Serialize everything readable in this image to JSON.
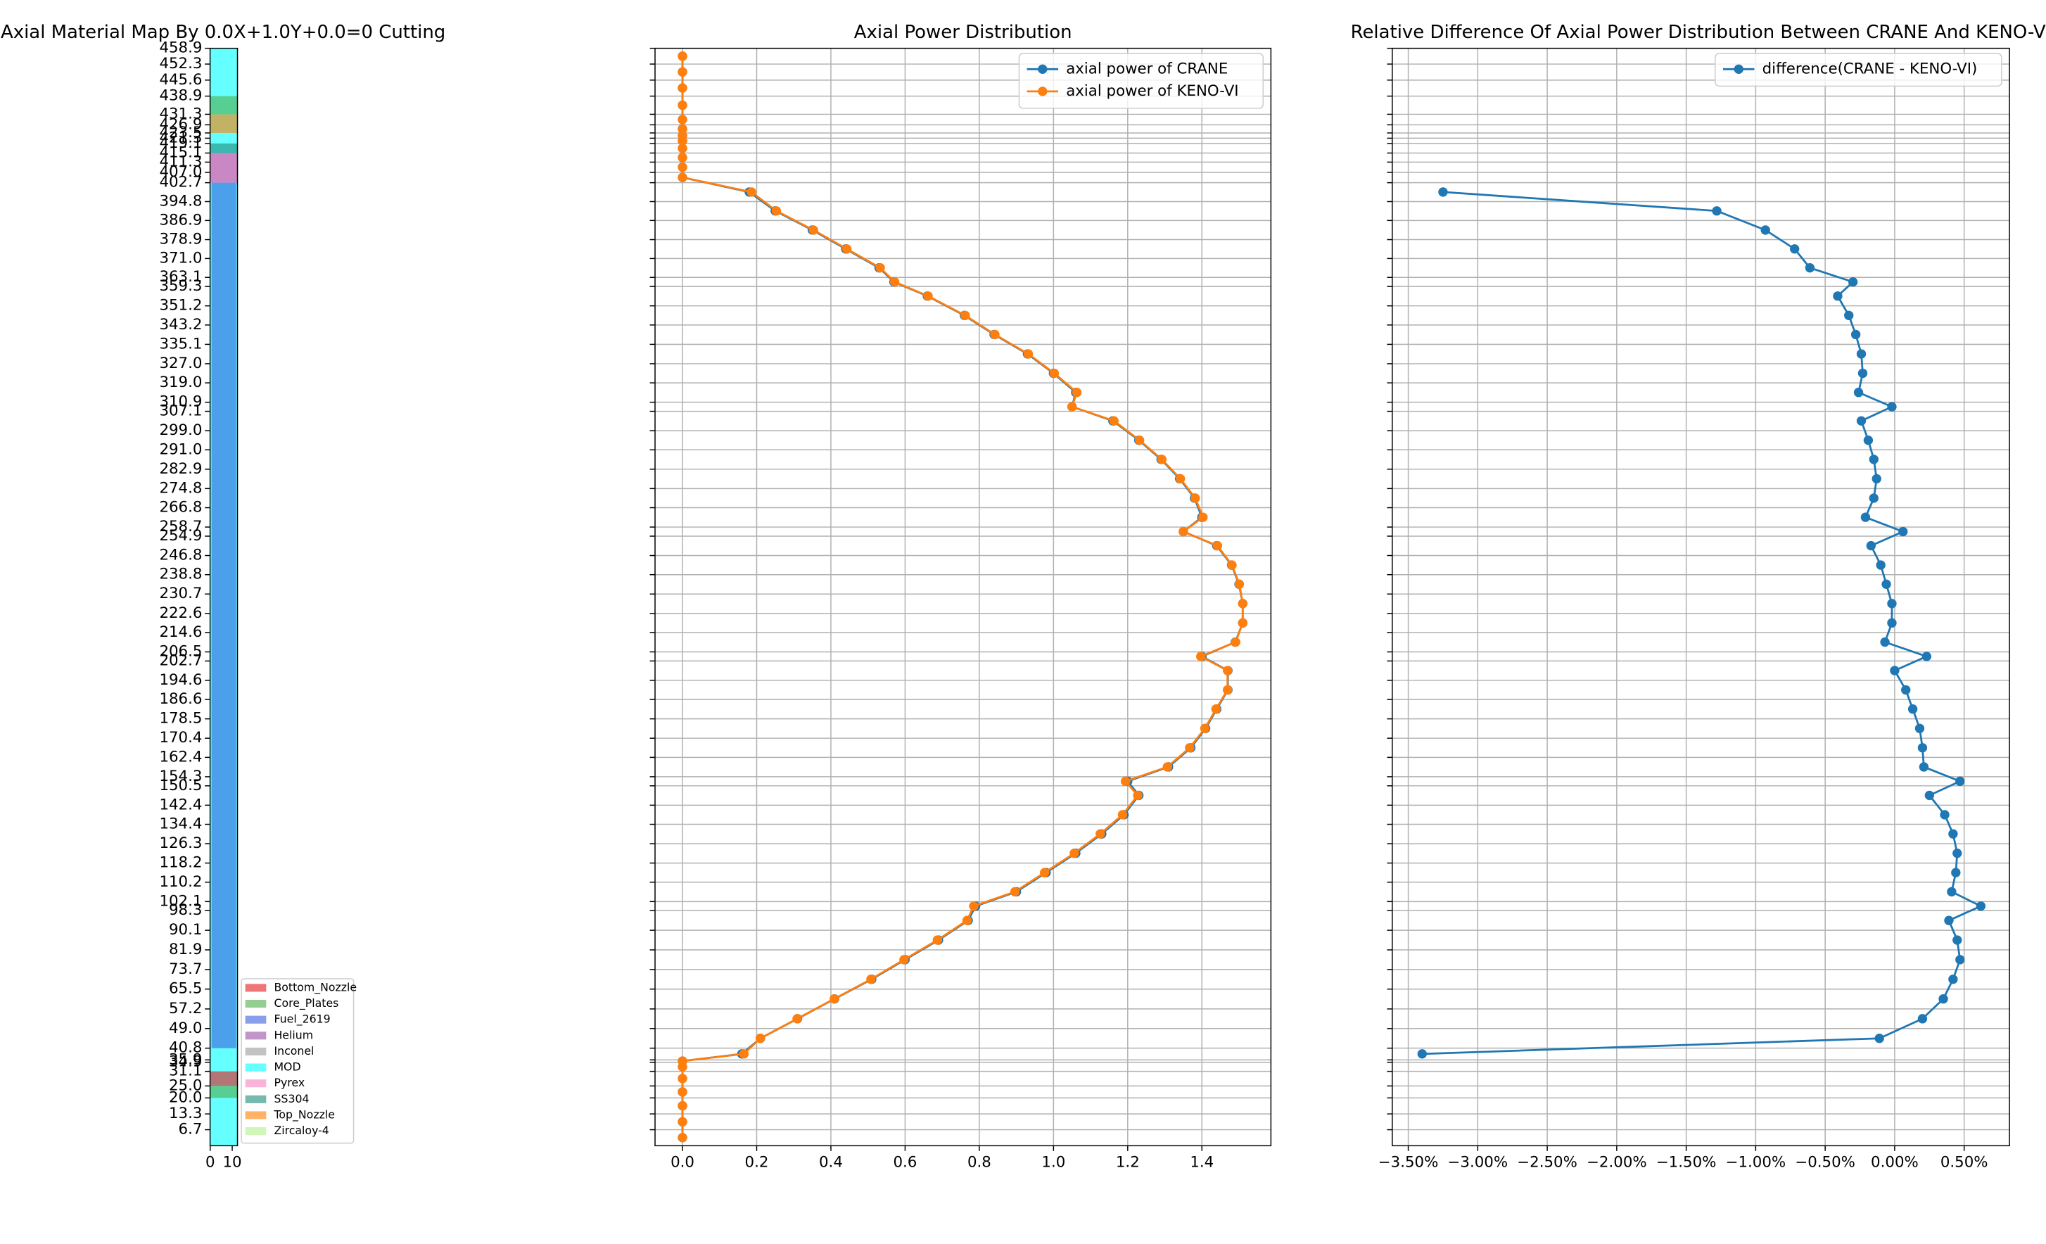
{
  "chart_data": [
    {
      "type": "material_map",
      "title": "Axial Material Map By 0.0X+1.0Y+0.0=0 Cutting",
      "xlim": [
        -0.06,
        12.4
      ],
      "xticks": [
        0,
        10
      ],
      "ylim": [
        0,
        458.9
      ],
      "yticks": [
        458.9,
        452.3,
        445.6,
        438.9,
        431.3,
        426.9,
        423.5,
        421.3,
        419.1,
        415.1,
        411.3,
        {
          "value": 407,
          "label": "407.0"
        },
        402.7,
        394.8,
        386.9,
        378.9,
        {
          "value": 371,
          "label": "371.0"
        },
        363.1,
        359.3,
        351.2,
        343.2,
        335.1,
        {
          "value": 327,
          "label": "327.0"
        },
        {
          "value": 319,
          "label": "319.0"
        },
        310.9,
        307.1,
        {
          "value": 299,
          "label": "299.0"
        },
        {
          "value": 291,
          "label": "291.0"
        },
        282.9,
        274.8,
        266.8,
        258.7,
        254.9,
        246.8,
        238.8,
        230.7,
        222.6,
        214.6,
        206.5,
        202.7,
        194.6,
        186.6,
        178.5,
        170.4,
        162.4,
        154.3,
        150.5,
        142.4,
        134.4,
        126.3,
        118.2,
        110.2,
        102.1,
        98.3,
        90.1,
        81.9,
        73.7,
        65.5,
        57.2,
        {
          "value": 49,
          "label": "49.0"
        },
        40.8,
        35.9,
        34.9,
        31.1,
        {
          "value": 25,
          "label": "25.0"
        },
        {
          "value": 20,
          "label": "20.0"
        },
        13.3,
        6.7
      ],
      "materials": [
        {
          "name": "Bottom_Nozzle",
          "color": "#e41a1c"
        },
        {
          "name": "Core_Plates",
          "color": "#4daf4a"
        },
        {
          "name": "Fuel_2619",
          "color": "#3a5fdc"
        },
        {
          "name": "Helium",
          "color": "#984ea3"
        },
        {
          "name": "Inconel",
          "color": "#999999"
        },
        {
          "name": "MOD",
          "color": "#00ffff"
        },
        {
          "name": "Pyrex",
          "color": "#f781bf"
        },
        {
          "name": "SS304",
          "color": "#1b8a7a"
        },
        {
          "name": "Top_Nozzle",
          "color": "#ff7f00"
        },
        {
          "name": "Zircaloy-4",
          "color": "#b2f08a"
        }
      ],
      "regions": [
        {
          "material": 5,
          "x": [
            -0.06,
            12.4
          ],
          "z": [
            0,
            458.9
          ]
        },
        {
          "material": 2,
          "x": [
            0.6,
            11.8
          ],
          "z": [
            40.8,
            402.7
          ]
        },
        {
          "material": 3,
          "x": [
            -0.06,
            12.4
          ],
          "z": [
            402.7,
            415.1
          ]
        },
        {
          "material": 6,
          "x": [
            -0.06,
            12.4
          ],
          "z": [
            402.7,
            415.1
          ]
        },
        {
          "material": 7,
          "x": [
            -0.06,
            12.4
          ],
          "z": [
            415.1,
            419.1
          ]
        },
        {
          "material": 8,
          "x": [
            -0.06,
            12.4
          ],
          "z": [
            423.5,
            431.3
          ]
        },
        {
          "material": 1,
          "x": [
            -0.06,
            12.4
          ],
          "z": [
            431.3,
            438.9
          ]
        },
        {
          "material": 0,
          "x": [
            -0.06,
            12.4
          ],
          "z": [
            25,
            31.1
          ]
        },
        {
          "material": 1,
          "x": [
            -0.06,
            12.4
          ],
          "z": [
            20,
            25
          ]
        }
      ],
      "legend": "lower right"
    },
    {
      "type": "line",
      "title": "Axial Power Distribution",
      "xlim": [
        -0.074,
        1.586
      ],
      "xticks": [
        {
          "value": 0,
          "label": "0.0"
        },
        0.2,
        0.4,
        0.6,
        0.8,
        {
          "value": 1,
          "label": "1.0"
        },
        1.2,
        1.4
      ],
      "grid": true,
      "legend": "upper right",
      "y": [
        455.6,
        449.0,
        442.3,
        435.1,
        429.1,
        425.2,
        422.4,
        420.2,
        417.1,
        413.2,
        409.2,
        404.9,
        398.8,
        390.9,
        382.9,
        375.0,
        367.1,
        361.2,
        355.3,
        347.2,
        339.2,
        331.1,
        323.0,
        315.0,
        309.0,
        303.1,
        295.0,
        287.0,
        278.9,
        270.8,
        262.8,
        256.8,
        250.9,
        242.8,
        234.8,
        226.7,
        218.6,
        210.6,
        204.6,
        198.7,
        190.6,
        182.6,
        174.5,
        166.4,
        158.4,
        152.4,
        146.5,
        138.4,
        130.4,
        122.3,
        114.2,
        106.2,
        100.2,
        94.2,
        86.0,
        77.8,
        69.6,
        61.4,
        53.1,
        44.9,
        38.4,
        35.4,
        33.0,
        28.1,
        22.5,
        16.7,
        10.0,
        3.4
      ],
      "series": [
        {
          "name": "axial power of CRANE",
          "color": "#1f77b4",
          "values": [
            0,
            0,
            0,
            0,
            0,
            0,
            0,
            0,
            0,
            0,
            0,
            0,
            0.18,
            0.25,
            0.35,
            0.44,
            0.53,
            0.57,
            0.66,
            0.76,
            0.84,
            0.93,
            1.0,
            1.06,
            1.05,
            1.16,
            1.23,
            1.29,
            1.34,
            1.38,
            1.4,
            1.35,
            1.44,
            1.48,
            1.5,
            1.51,
            1.51,
            1.49,
            1.4,
            1.47,
            1.47,
            1.44,
            1.41,
            1.37,
            1.31,
            1.2,
            1.23,
            1.19,
            1.13,
            1.06,
            0.98,
            0.9,
            0.79,
            0.77,
            0.69,
            0.6,
            0.51,
            0.41,
            0.31,
            0.21,
            0.16,
            0,
            0,
            0,
            0,
            0,
            0,
            0
          ]
        },
        {
          "name": "axial power of KENO-VI",
          "color": "#ff7f0e",
          "values": [
            0,
            0,
            0,
            0,
            0,
            0,
            0,
            0,
            0,
            0,
            0,
            0,
            0.186,
            0.253,
            0.353,
            0.443,
            0.533,
            0.572,
            0.662,
            0.762,
            0.842,
            0.932,
            1.002,
            1.063,
            1.05,
            1.163,
            1.232,
            1.292,
            1.342,
            1.382,
            1.403,
            1.35,
            1.442,
            1.481,
            1.501,
            1.51,
            1.51,
            1.491,
            1.397,
            1.469,
            1.469,
            1.438,
            1.408,
            1.367,
            1.307,
            1.194,
            1.227,
            1.186,
            1.126,
            1.056,
            0.976,
            0.896,
            0.785,
            0.767,
            0.687,
            0.597,
            0.508,
            0.409,
            0.309,
            0.2096,
            0.1655,
            0,
            0,
            0,
            0,
            0,
            0,
            0
          ]
        }
      ]
    },
    {
      "type": "line",
      "title": "Relative Difference Of Axial Power Distribution Between CRANE And KENO-VI",
      "xlim": [
        -3.615,
        0.826
      ],
      "xticks": [
        {
          "value": -3.5,
          "label": "−3.50%"
        },
        {
          "value": -3,
          "label": "−3.00%"
        },
        {
          "value": -2.5,
          "label": "−2.50%"
        },
        {
          "value": -2,
          "label": "−2.00%"
        },
        {
          "value": -1.5,
          "label": "−1.50%"
        },
        {
          "value": -1,
          "label": "−1.00%"
        },
        {
          "value": -0.5,
          "label": "−0.50%"
        },
        {
          "value": 0,
          "label": "0.00%"
        },
        {
          "value": 0.5,
          "label": "0.50%"
        }
      ],
      "grid": true,
      "legend": "upper right",
      "series": [
        {
          "name": "difference(CRANE - KENO-VI)",
          "color": "#1f77b4",
          "values": [
            null,
            null,
            null,
            null,
            null,
            null,
            null,
            null,
            null,
            null,
            null,
            null,
            -3.25,
            -1.28,
            -0.93,
            -0.72,
            -0.61,
            -0.3,
            -0.41,
            -0.33,
            -0.28,
            -0.24,
            -0.23,
            -0.26,
            -0.02,
            -0.24,
            -0.19,
            -0.15,
            -0.13,
            -0.15,
            -0.21,
            0.06,
            -0.17,
            -0.1,
            -0.06,
            -0.02,
            -0.02,
            -0.07,
            0.23,
            0.0,
            0.08,
            0.13,
            0.18,
            0.2,
            0.21,
            0.47,
            0.25,
            0.36,
            0.42,
            0.45,
            0.44,
            0.41,
            0.62,
            0.39,
            0.45,
            0.47,
            0.42,
            0.35,
            0.2,
            -0.11,
            -3.4,
            null,
            null,
            null,
            null,
            null,
            null,
            null
          ]
        }
      ]
    }
  ]
}
